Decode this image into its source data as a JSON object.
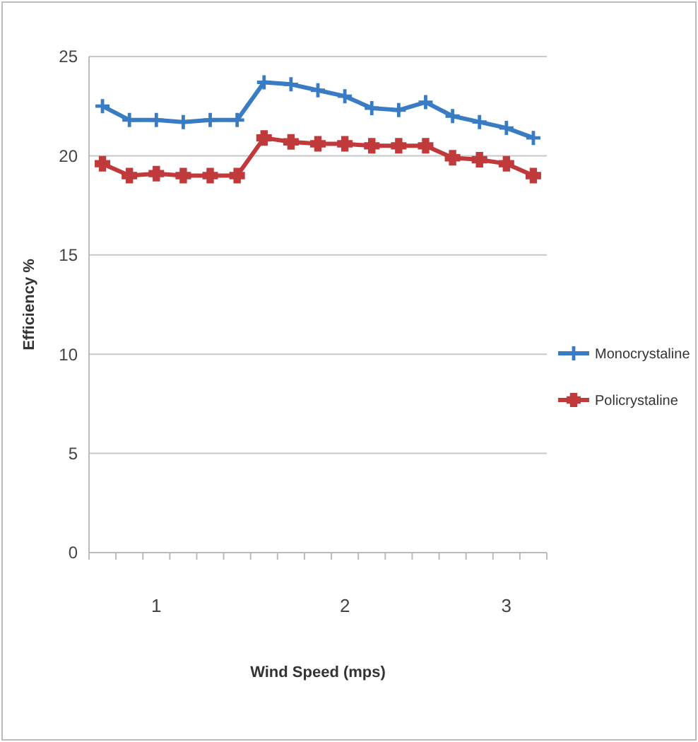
{
  "chart_data": {
    "type": "line",
    "xlabel": "Wind Speed (mps)",
    "ylabel": "Efficiency %",
    "categories": [
      null,
      null,
      "1",
      null,
      null,
      null,
      null,
      null,
      null,
      "2",
      null,
      null,
      null,
      null,
      null,
      "3",
      null
    ],
    "series": [
      {
        "name": "Monocrystaline",
        "color": "#3a7cc4",
        "values": [
          22.5,
          21.8,
          21.8,
          21.7,
          21.8,
          21.8,
          23.7,
          23.6,
          23.3,
          23.0,
          22.4,
          22.3,
          22.7,
          22.0,
          21.7,
          21.4,
          20.9
        ]
      },
      {
        "name": "Policrystaline",
        "color": "#c0393b",
        "values": [
          19.6,
          19.0,
          19.1,
          19.0,
          19.0,
          19.0,
          20.9,
          20.7,
          20.6,
          20.6,
          20.5,
          20.5,
          20.5,
          19.9,
          19.8,
          19.6,
          19.0
        ]
      }
    ],
    "ylim": [
      0,
      25
    ],
    "yticks": [
      0,
      5,
      10,
      15,
      20,
      25
    ],
    "grid": "y",
    "legend": "right",
    "marker": "cross"
  }
}
